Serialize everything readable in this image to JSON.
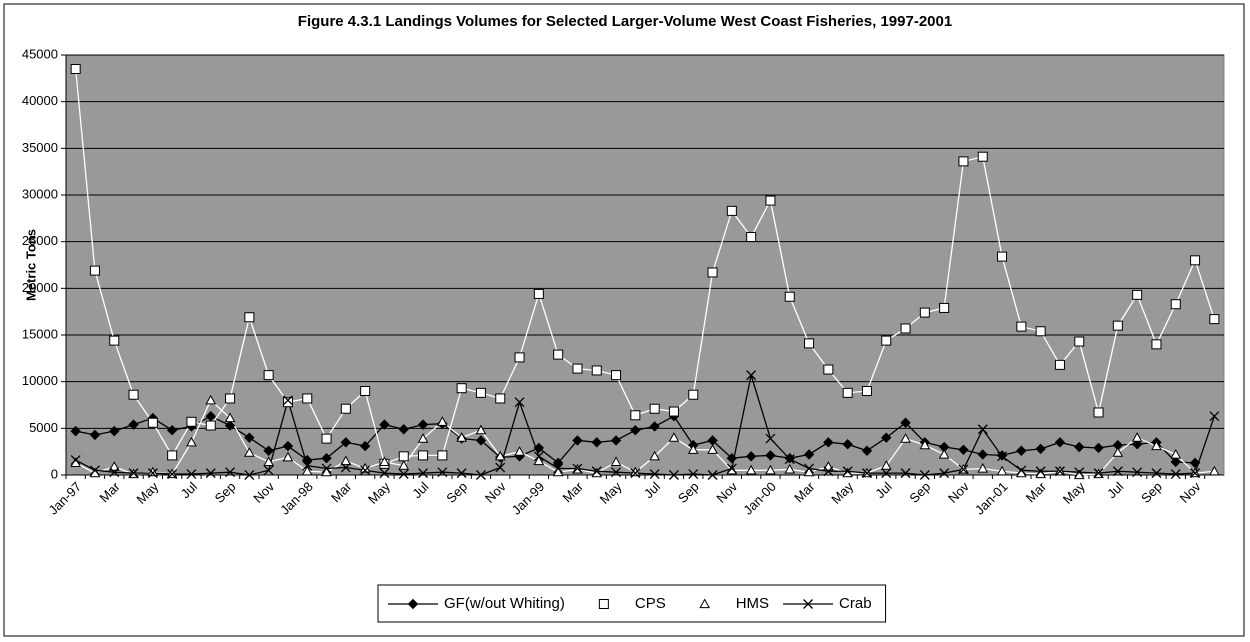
{
  "chart_data": {
    "type": "line",
    "title": "Figure 4.3.1  Landings Volumes for Selected Larger-Volume West Coast Fisheries, 1997-2001",
    "y_label": "Metric Tons",
    "categories": [
      "Jan-97",
      null,
      "Mar",
      null,
      "May",
      null,
      "Jul",
      null,
      "Sep",
      null,
      "Nov",
      null,
      "Jan-98",
      null,
      "Mar",
      null,
      "May",
      null,
      "Jul",
      null,
      "Sep",
      null,
      "Nov",
      null,
      "Jan-99",
      null,
      "Mar",
      null,
      "May",
      null,
      "Jul",
      null,
      "Sep",
      null,
      "Nov",
      null,
      "Jan-00",
      null,
      "Mar",
      null,
      "May",
      null,
      "Jul",
      null,
      "Sep",
      null,
      "Nov",
      null,
      "Jan-01",
      null,
      "Mar",
      null,
      "May",
      null,
      "Jul",
      null,
      "Sep",
      null,
      "Nov",
      null
    ],
    "series": [
      {
        "name": "GF(w/out Whiting)",
        "color": "#000000",
        "marker": "diamond",
        "values": [
          4700,
          4300,
          4700,
          5400,
          6100,
          4800,
          5200,
          6300,
          5300,
          4000,
          2600,
          3100,
          1600,
          1800,
          3500,
          3100,
          5400,
          4900,
          5400,
          5500,
          3900,
          3700,
          1900,
          2000,
          2900,
          1300,
          3700,
          3500,
          3700,
          4800,
          5200,
          6300,
          3200,
          3700,
          1800,
          2000,
          2100,
          1800,
          2200,
          3500,
          3300,
          2600,
          4000,
          5600,
          3500,
          3000,
          2700,
          2200,
          2100,
          2600,
          2800,
          3500,
          3000,
          2900,
          3200,
          3300,
          3500,
          1400,
          1300,
          null
        ]
      },
      {
        "name": "CPS",
        "color": "#ffffff",
        "marker": "square",
        "values": [
          43500,
          21900,
          14400,
          8600,
          5600,
          2100,
          5700,
          5300,
          8200,
          16900,
          10700,
          7800,
          8200,
          3900,
          7100,
          9000,
          1200,
          2000,
          2100,
          2100,
          9300,
          8800,
          8200,
          12600,
          19400,
          12900,
          11400,
          11200,
          10700,
          6400,
          7100,
          6800,
          8600,
          21700,
          28300,
          25500,
          29400,
          19100,
          14100,
          11300,
          8800,
          9000,
          14400,
          15700,
          17400,
          17900,
          33600,
          34100,
          23400,
          15900,
          15400,
          11800,
          14300,
          6700,
          16000,
          19300,
          14000,
          18300,
          23000,
          16700
        ]
      },
      {
        "name": "HMS",
        "color": "#ffffff",
        "marker": "triangle",
        "values": [
          1300,
          200,
          900,
          100,
          300,
          100,
          3500,
          8000,
          6100,
          2400,
          1400,
          1900,
          400,
          300,
          1500,
          700,
          1400,
          1000,
          3900,
          5700,
          4000,
          4800,
          2000,
          2500,
          1500,
          300,
          600,
          200,
          1400,
          300,
          2000,
          4000,
          2700,
          2700,
          500,
          500,
          500,
          600,
          300,
          900,
          200,
          200,
          1000,
          3900,
          3200,
          2200,
          600,
          700,
          400,
          200,
          100,
          400,
          0,
          100,
          2400,
          4000,
          3100,
          2200,
          200,
          400
        ]
      },
      {
        "name": "Crab",
        "color": "#000000",
        "marker": "cross",
        "values": [
          1600,
          500,
          300,
          200,
          200,
          100,
          100,
          200,
          300,
          0,
          500,
          8000,
          1000,
          700,
          800,
          500,
          200,
          100,
          200,
          300,
          200,
          0,
          800,
          7800,
          2000,
          700,
          700,
          400,
          300,
          200,
          100,
          0,
          100,
          0,
          700,
          10700,
          3900,
          1700,
          700,
          400,
          400,
          200,
          200,
          200,
          0,
          200,
          600,
          4900,
          2000,
          500,
          400,
          400,
          300,
          200,
          400,
          300,
          200,
          100,
          200,
          6300
        ]
      }
    ],
    "ylim": [
      0,
      45000
    ],
    "yticks": [
      0,
      5000,
      10000,
      15000,
      20000,
      25000,
      30000,
      35000,
      40000,
      45000
    ],
    "grid": true,
    "plot_background": "#999999",
    "legend": "bottom"
  }
}
